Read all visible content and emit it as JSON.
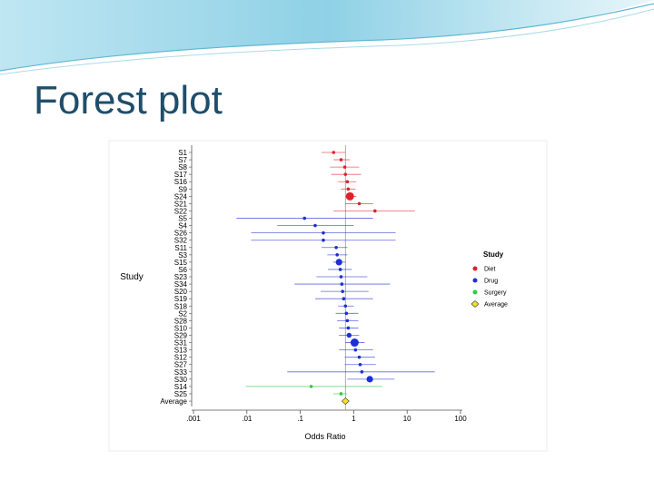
{
  "slide_title": "Forest plot",
  "chart_data": {
    "type": "forest",
    "y_label": "Study",
    "x_label": "Odds Ratio",
    "x_log": true,
    "xlim": [
      0.001,
      100
    ],
    "xticks": [
      {
        "value": 0.001,
        "label": ".001"
      },
      {
        "value": 0.01,
        "label": ".01"
      },
      {
        "value": 0.1,
        "label": ".1"
      },
      1,
      10,
      100
    ],
    "legend_title": "Study",
    "legend_position": "right",
    "series": [
      {
        "name": "Diet",
        "color": "#e0202a",
        "categories": [
          "S1",
          "S7",
          "S8",
          "S17",
          "S16",
          "S9",
          "S24",
          "S21",
          "S22"
        ],
        "values": [
          0.42,
          0.58,
          0.68,
          0.7,
          0.76,
          0.79,
          0.85,
          1.27,
          2.5
        ],
        "lower": [
          0.25,
          0.42,
          0.36,
          0.38,
          0.51,
          0.58,
          0.7,
          0.7,
          0.42
        ],
        "upper": [
          0.7,
          0.85,
          1.27,
          1.37,
          1.12,
          1.08,
          1.12,
          2.3,
          14
        ],
        "sizes": [
          2,
          2,
          2,
          2,
          2,
          2,
          5,
          2,
          2
        ]
      },
      {
        "name": "Drug",
        "color": "#1d2fd6",
        "categories": [
          "S5",
          "S4",
          "S26",
          "S32",
          "S11",
          "S3",
          "S15",
          "S6",
          "S23",
          "S34",
          "S20",
          "S19",
          "S18",
          "S2",
          "S28",
          "S10",
          "S29",
          "S31",
          "S13",
          "S12",
          "S27",
          "S33",
          "S30"
        ],
        "values": [
          0.12,
          0.19,
          0.27,
          0.27,
          0.47,
          0.49,
          0.53,
          0.56,
          0.58,
          0.6,
          0.62,
          0.65,
          0.7,
          0.73,
          0.76,
          0.79,
          0.82,
          1.04,
          1.08,
          1.27,
          1.32,
          1.42,
          2.0
        ],
        "lower": [
          0.0064,
          0.037,
          0.012,
          0.012,
          0.25,
          0.32,
          0.41,
          0.33,
          0.2,
          0.078,
          0.24,
          0.19,
          0.51,
          0.46,
          0.49,
          0.53,
          0.53,
          0.7,
          0.53,
          0.68,
          0.68,
          0.057,
          0.76
        ],
        "upper": [
          2.3,
          1.0,
          6.1,
          6.1,
          0.76,
          0.76,
          0.7,
          0.92,
          1.8,
          4.8,
          1.9,
          2.3,
          1.0,
          1.22,
          1.22,
          1.22,
          1.27,
          1.6,
          2.3,
          2.5,
          2.6,
          33,
          5.8
        ],
        "sizes": [
          2,
          2,
          2,
          2,
          2,
          2,
          4,
          2,
          2,
          2,
          2,
          2,
          2,
          2,
          2,
          2,
          3,
          5,
          2,
          2,
          2,
          2,
          4
        ]
      },
      {
        "name": "Surgery",
        "color": "#2ecc40",
        "categories": [
          "S14",
          "S25"
        ],
        "values": [
          0.16,
          0.58
        ],
        "lower": [
          0.0095,
          0.41
        ],
        "upper": [
          3.4,
          0.76
        ],
        "sizes": [
          2,
          2
        ]
      }
    ],
    "average": {
      "name": "Average",
      "color": "#f2e22a",
      "value": 0.7
    }
  }
}
